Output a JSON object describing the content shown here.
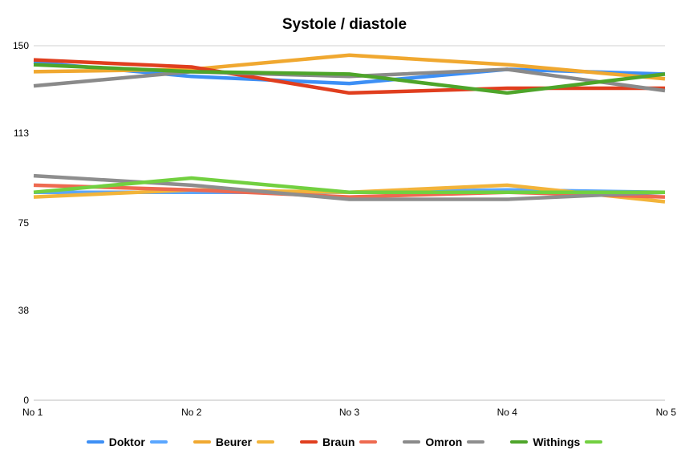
{
  "chart_data": {
    "type": "line",
    "title": "Systole / diastole",
    "xlabel": "",
    "ylabel": "",
    "categories": [
      "No 1",
      "No 2",
      "No 3",
      "No 4",
      "No 5"
    ],
    "ylim": [
      0,
      150
    ],
    "yticks": [
      "0",
      "38",
      "75",
      "113",
      "150"
    ],
    "grid": false,
    "legend_position": "bottom",
    "series": [
      {
        "name": "Doktor",
        "color": "#3d8ff5",
        "values": [
          143,
          137,
          134,
          140,
          138
        ]
      },
      {
        "name": "",
        "color": "#5aa6ff",
        "values": [
          88,
          88,
          88,
          89,
          88
        ]
      },
      {
        "name": "Beurer",
        "color": "#f0a830",
        "values": [
          139,
          140,
          146,
          142,
          136
        ]
      },
      {
        "name": "",
        "color": "#f2b43a",
        "values": [
          86,
          89,
          88,
          91,
          84
        ]
      },
      {
        "name": "Braun",
        "color": "#e03e1e",
        "values": [
          144,
          141,
          130,
          132,
          132
        ]
      },
      {
        "name": "",
        "color": "#ee6a50",
        "values": [
          91,
          89,
          86,
          88,
          86
        ]
      },
      {
        "name": "Omron",
        "color": "#8a8a8a",
        "values": [
          133,
          139,
          137,
          140,
          131
        ]
      },
      {
        "name": "",
        "color": "#8e8e8e",
        "values": [
          95,
          91,
          85,
          85,
          88
        ]
      },
      {
        "name": "Withings",
        "color": "#4ea52a",
        "values": [
          142,
          139,
          138,
          130,
          138
        ]
      },
      {
        "name": "",
        "color": "#72d040",
        "values": [
          88,
          94,
          88,
          88,
          88
        ]
      }
    ]
  }
}
